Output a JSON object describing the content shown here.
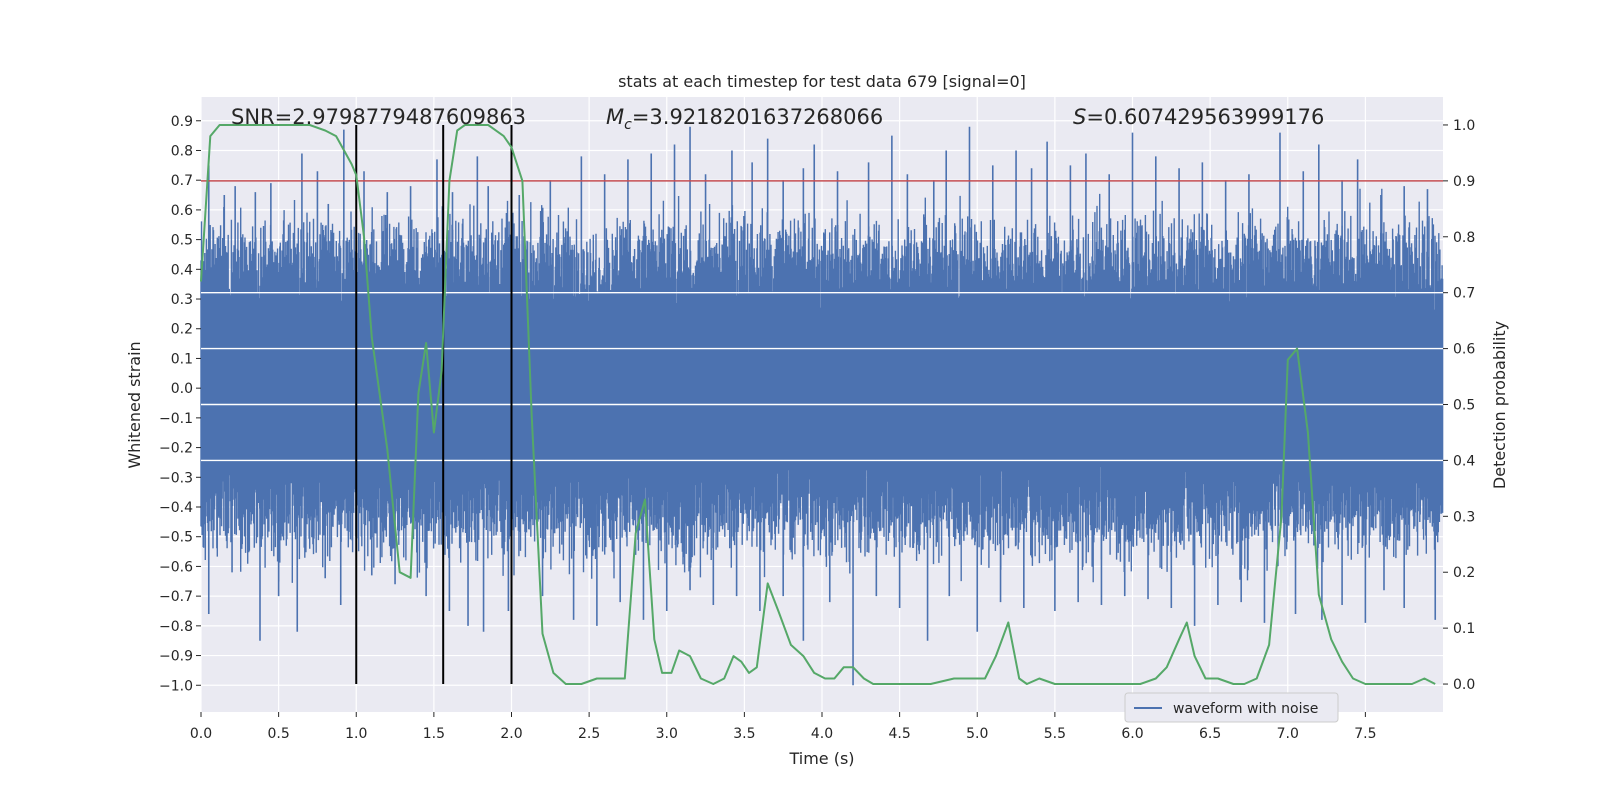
{
  "chart_data": {
    "type": "line",
    "title": "stats at each timestep for test data 679 [signal=0]",
    "xlabel": "Time (s)",
    "ylabel_left": "Whitened strain",
    "ylabel_right": "Detection probability",
    "xlim": [
      0.0,
      8.0
    ],
    "ylim_left": [
      -1.09,
      0.98
    ],
    "ylim_right": [
      -0.05,
      1.05
    ],
    "x_ticks": [
      "0.0",
      "0.5",
      "1.0",
      "1.5",
      "2.0",
      "2.5",
      "3.0",
      "3.5",
      "4.0",
      "4.5",
      "5.0",
      "5.5",
      "6.0",
      "6.5",
      "7.0",
      "7.5"
    ],
    "y_ticks_left": [
      "0.9",
      "0.8",
      "0.7",
      "0.6",
      "0.5",
      "0.4",
      "0.3",
      "0.2",
      "0.1",
      "0.0",
      "−0.1",
      "−0.2",
      "−0.3",
      "−0.4",
      "−0.5",
      "−0.6",
      "−0.7",
      "−0.8",
      "−0.9",
      "−1.0"
    ],
    "y_ticks_right": [
      "1.0",
      "0.9",
      "0.8",
      "0.7",
      "0.6",
      "0.5",
      "0.4",
      "0.3",
      "0.2",
      "0.1",
      "0.0"
    ],
    "stats": {
      "snr_label": "SNR=2.9798779487609863",
      "mc_prefix": "M",
      "mc_sub": "c",
      "mc_value": "=3.9218201637268066",
      "s_prefix": "S",
      "s_value": "=0.607429563999176"
    },
    "threshold": 0.9,
    "vlines": [
      1.0,
      1.56,
      2.0
    ],
    "legend": "waveform with noise",
    "colors": {
      "background": "#eaeaf2",
      "waveform": "#4c72b0",
      "probability": "#55a868",
      "threshold": "#c44e52",
      "vline": "#000000"
    },
    "series": [
      {
        "name": "waveform with noise",
        "axis": "left",
        "style": "noise",
        "spikes_up": [
          [
            0.05,
            0.75
          ],
          [
            0.15,
            0.65
          ],
          [
            0.22,
            0.68
          ],
          [
            0.35,
            0.66
          ],
          [
            0.45,
            0.69
          ],
          [
            0.65,
            0.79
          ],
          [
            0.75,
            0.73
          ],
          [
            0.82,
            0.62
          ],
          [
            0.92,
            0.87
          ],
          [
            1.05,
            0.73
          ],
          [
            1.2,
            0.66
          ],
          [
            1.35,
            0.68
          ],
          [
            1.52,
            0.77
          ],
          [
            1.62,
            0.66
          ],
          [
            1.78,
            0.78
          ],
          [
            1.85,
            0.68
          ],
          [
            2.05,
            0.65
          ],
          [
            2.25,
            0.7
          ],
          [
            2.45,
            0.78
          ],
          [
            2.6,
            0.72
          ],
          [
            2.75,
            0.77
          ],
          [
            2.9,
            0.79
          ],
          [
            3.05,
            0.82
          ],
          [
            3.15,
            0.88
          ],
          [
            3.25,
            0.72
          ],
          [
            3.42,
            0.8
          ],
          [
            3.55,
            0.76
          ],
          [
            3.65,
            0.84
          ],
          [
            3.75,
            0.7
          ],
          [
            3.88,
            0.74
          ],
          [
            3.95,
            0.82
          ],
          [
            4.1,
            0.73
          ],
          [
            4.3,
            0.76
          ],
          [
            4.45,
            0.85
          ],
          [
            4.55,
            0.72
          ],
          [
            4.72,
            0.7
          ],
          [
            4.8,
            0.8
          ],
          [
            4.95,
            0.88
          ],
          [
            5.1,
            0.75
          ],
          [
            5.25,
            0.8
          ],
          [
            5.35,
            0.74
          ],
          [
            5.45,
            0.83
          ],
          [
            5.6,
            0.75
          ],
          [
            5.7,
            0.79
          ],
          [
            5.85,
            0.72
          ],
          [
            6.0,
            0.86
          ],
          [
            6.15,
            0.78
          ],
          [
            6.3,
            0.74
          ],
          [
            6.45,
            0.76
          ],
          [
            6.6,
            0.7
          ],
          [
            6.75,
            0.72
          ],
          [
            6.95,
            0.86
          ],
          [
            7.1,
            0.73
          ],
          [
            7.2,
            0.82
          ],
          [
            7.35,
            0.7
          ],
          [
            7.45,
            0.77
          ],
          [
            7.6,
            0.65
          ],
          [
            7.75,
            0.68
          ],
          [
            7.9,
            0.67
          ]
        ],
        "spikes_down": [
          [
            0.05,
            -0.76
          ],
          [
            0.2,
            -0.62
          ],
          [
            0.38,
            -0.85
          ],
          [
            0.5,
            -0.7
          ],
          [
            0.62,
            -0.82
          ],
          [
            0.8,
            -0.64
          ],
          [
            0.9,
            -0.73
          ],
          [
            1.1,
            -0.63
          ],
          [
            1.25,
            -0.66
          ],
          [
            1.45,
            -0.7
          ],
          [
            1.6,
            -0.75
          ],
          [
            1.72,
            -0.8
          ],
          [
            1.82,
            -0.82
          ],
          [
            1.98,
            -0.75
          ],
          [
            2.2,
            -0.7
          ],
          [
            2.4,
            -0.78
          ],
          [
            2.55,
            -0.8
          ],
          [
            2.7,
            -0.72
          ],
          [
            2.85,
            -0.78
          ],
          [
            3.0,
            -0.75
          ],
          [
            3.15,
            -0.68
          ],
          [
            3.3,
            -0.73
          ],
          [
            3.45,
            -0.7
          ],
          [
            3.6,
            -0.75
          ],
          [
            3.75,
            -0.7
          ],
          [
            3.88,
            -0.85
          ],
          [
            4.05,
            -0.72
          ],
          [
            4.2,
            -1.0
          ],
          [
            4.35,
            -0.7
          ],
          [
            4.5,
            -0.74
          ],
          [
            4.68,
            -0.85
          ],
          [
            4.82,
            -0.7
          ],
          [
            5.0,
            -0.82
          ],
          [
            5.15,
            -0.72
          ],
          [
            5.3,
            -0.74
          ],
          [
            5.5,
            -0.75
          ],
          [
            5.65,
            -0.72
          ],
          [
            5.8,
            -0.73
          ],
          [
            5.95,
            -0.7
          ],
          [
            6.1,
            -0.71
          ],
          [
            6.25,
            -0.74
          ],
          [
            6.4,
            -0.8
          ],
          [
            6.55,
            -0.73
          ],
          [
            6.7,
            -0.72
          ],
          [
            6.85,
            -0.79
          ],
          [
            7.05,
            -0.76
          ],
          [
            7.22,
            -0.78
          ],
          [
            7.35,
            -0.73
          ],
          [
            7.5,
            -0.79
          ],
          [
            7.62,
            -0.68
          ],
          [
            7.75,
            -0.74
          ],
          [
            7.95,
            -0.78
          ]
        ]
      },
      {
        "name": "detection probability",
        "axis": "right",
        "style": "line",
        "x": [
          0.0,
          0.06,
          0.12,
          0.2,
          0.3,
          0.4,
          0.5,
          0.6,
          0.7,
          0.8,
          0.87,
          0.93,
          0.97,
          1.0,
          1.05,
          1.1,
          1.2,
          1.28,
          1.35,
          1.4,
          1.45,
          1.5,
          1.55,
          1.6,
          1.65,
          1.7,
          1.78,
          1.85,
          1.95,
          2.0,
          2.07,
          2.13,
          2.2,
          2.27,
          2.35,
          2.45,
          2.55,
          2.65,
          2.73,
          2.8,
          2.86,
          2.92,
          2.97,
          3.03,
          3.08,
          3.15,
          3.22,
          3.3,
          3.37,
          3.43,
          3.48,
          3.53,
          3.58,
          3.65,
          3.72,
          3.8,
          3.88,
          3.95,
          4.02,
          4.08,
          4.14,
          4.2,
          4.27,
          4.33,
          4.42,
          4.55,
          4.7,
          4.85,
          4.95,
          5.05,
          5.12,
          5.2,
          5.27,
          5.32,
          5.4,
          5.5,
          5.6,
          5.75,
          5.9,
          6.05,
          6.15,
          6.22,
          6.3,
          6.35,
          6.4,
          6.47,
          6.55,
          6.65,
          6.72,
          6.8,
          6.88,
          6.96,
          7.0,
          7.06,
          7.13,
          7.2,
          7.28,
          7.35,
          7.42,
          7.5,
          7.6,
          7.7,
          7.8,
          7.88,
          7.95
        ],
        "y": [
          0.72,
          0.98,
          1.0,
          1.0,
          1.0,
          1.0,
          1.0,
          1.0,
          1.0,
          0.99,
          0.98,
          0.95,
          0.93,
          0.91,
          0.8,
          0.62,
          0.42,
          0.2,
          0.19,
          0.52,
          0.61,
          0.45,
          0.56,
          0.9,
          0.99,
          1.0,
          1.0,
          1.0,
          0.98,
          0.96,
          0.9,
          0.48,
          0.09,
          0.02,
          0.0,
          0.0,
          0.01,
          0.01,
          0.01,
          0.27,
          0.33,
          0.08,
          0.02,
          0.02,
          0.06,
          0.05,
          0.01,
          0.0,
          0.01,
          0.05,
          0.04,
          0.02,
          0.03,
          0.18,
          0.13,
          0.07,
          0.05,
          0.02,
          0.01,
          0.01,
          0.03,
          0.03,
          0.01,
          0.0,
          0.0,
          0.0,
          0.0,
          0.01,
          0.01,
          0.01,
          0.05,
          0.11,
          0.01,
          0.0,
          0.01,
          0.0,
          0.0,
          0.0,
          0.0,
          0.0,
          0.01,
          0.03,
          0.08,
          0.11,
          0.05,
          0.01,
          0.01,
          0.0,
          0.0,
          0.01,
          0.07,
          0.3,
          0.58,
          0.6,
          0.45,
          0.16,
          0.08,
          0.04,
          0.01,
          0.0,
          0.0,
          0.0,
          0.0,
          0.01,
          0.0
        ]
      }
    ]
  }
}
